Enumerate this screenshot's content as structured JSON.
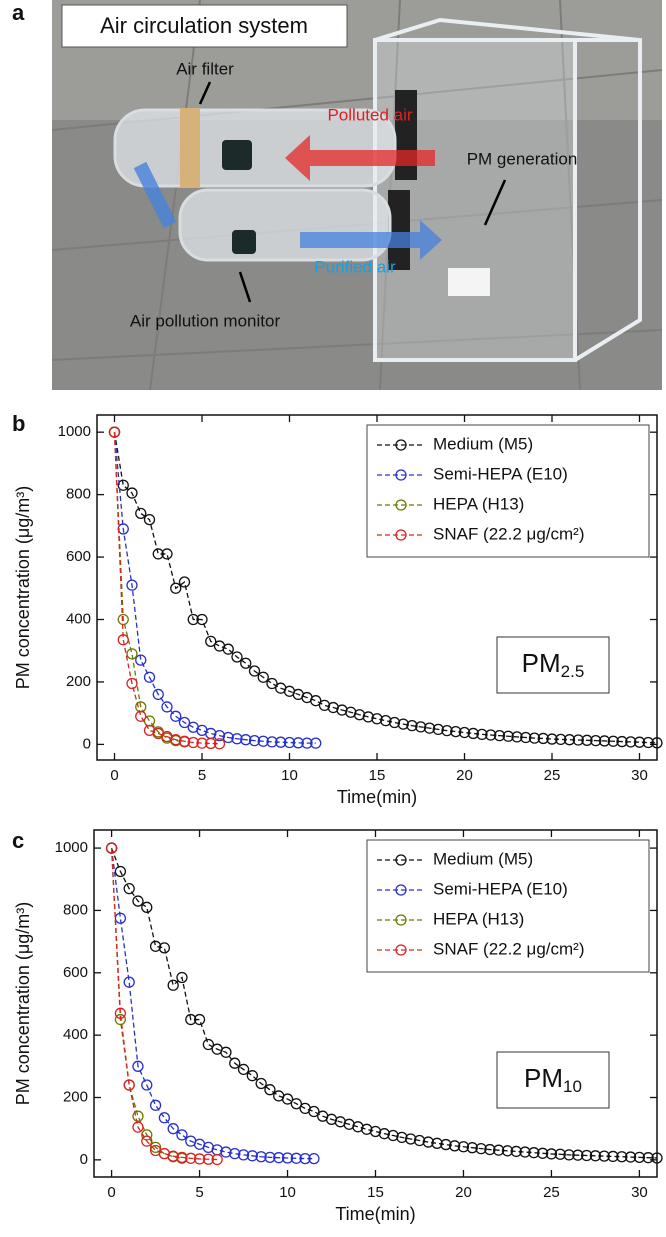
{
  "panel_labels": [
    "a",
    "b",
    "c"
  ],
  "photo": {
    "title": "Air circulation system",
    "air_filter": "Air filter",
    "polluted_air": "Polluted air",
    "pm_generation": "PM generation",
    "purified_air": "Purified air",
    "monitor": "Air pollution monitor"
  },
  "chart_data": [
    {
      "type": "line",
      "x_label": "Time(min)",
      "y_label": "PM concentration (μg/m³)",
      "annotation": {
        "main": "PM",
        "sub": "2.5"
      },
      "xlim": [
        -1,
        31
      ],
      "ylim": [
        -50,
        1055
      ],
      "xticks": [
        0,
        5,
        10,
        15,
        20,
        25,
        30
      ],
      "yticks": [
        0,
        200,
        400,
        600,
        800,
        1000
      ],
      "legend": "upper right",
      "series": [
        {
          "name": "Medium (M5)",
          "color": "#111111",
          "x": [
            0,
            0.5,
            1,
            1.5,
            2,
            2.5,
            3,
            3.5,
            4,
            4.5,
            5,
            5.5,
            6,
            6.5,
            7,
            7.5,
            8,
            8.5,
            9,
            9.5,
            10,
            10.5,
            11,
            11.5,
            12,
            12.5,
            13,
            13.5,
            14,
            14.5,
            15,
            15.5,
            16,
            16.5,
            17,
            17.5,
            18,
            18.5,
            19,
            19.5,
            20,
            20.5,
            21,
            21.5,
            22,
            22.5,
            23,
            23.5,
            24,
            24.5,
            25,
            25.5,
            26,
            26.5,
            27,
            27.5,
            28,
            28.5,
            29,
            29.5,
            30,
            30.5,
            31
          ],
          "values": [
            1000,
            830,
            805,
            740,
            720,
            610,
            610,
            500,
            520,
            400,
            400,
            330,
            315,
            305,
            280,
            260,
            235,
            215,
            195,
            180,
            170,
            160,
            150,
            140,
            125,
            118,
            110,
            103,
            95,
            88,
            82,
            76,
            70,
            65,
            60,
            56,
            52,
            48,
            44,
            41,
            38,
            35,
            32,
            30,
            28,
            26,
            24,
            22,
            20,
            19,
            17,
            16,
            15,
            14,
            13,
            12,
            11,
            10,
            9,
            8,
            7,
            6,
            5
          ]
        },
        {
          "name": "Semi-HEPA (E10)",
          "color": "#2430d0",
          "x": [
            0,
            0.5,
            1,
            1.5,
            2,
            2.5,
            3,
            3.5,
            4,
            4.5,
            5,
            5.5,
            6,
            6.5,
            7,
            7.5,
            8,
            8.5,
            9,
            9.5,
            10,
            10.5,
            11,
            11.5
          ],
          "values": [
            1000,
            690,
            510,
            270,
            215,
            160,
            120,
            90,
            70,
            55,
            45,
            35,
            28,
            22,
            18,
            15,
            12,
            10,
            8,
            7,
            6,
            5,
            4,
            4
          ]
        },
        {
          "name": "HEPA (H13)",
          "color": "#6b7a00",
          "x": [
            0,
            0.5,
            1,
            1.5,
            2,
            2.5,
            3,
            3.5,
            4
          ],
          "values": [
            1000,
            400,
            290,
            120,
            75,
            40,
            20,
            12,
            8
          ]
        },
        {
          "name": "SNAF (22.2 μg/cm²)",
          "color": "#dd2222",
          "x": [
            0,
            0.5,
            1,
            1.5,
            2,
            2.5,
            3,
            3.5,
            4,
            4.5,
            5,
            5.5,
            6
          ],
          "values": [
            1000,
            335,
            195,
            90,
            45,
            35,
            25,
            15,
            10,
            6,
            4,
            3,
            2
          ]
        }
      ]
    },
    {
      "type": "line",
      "x_label": "Time(min)",
      "y_label": "PM concentration (μg/m³)",
      "annotation": {
        "main": "PM",
        "sub": "10"
      },
      "xlim": [
        -1,
        31
      ],
      "ylim": [
        -55,
        1058
      ],
      "xticks": [
        0,
        5,
        10,
        15,
        20,
        25,
        30
      ],
      "yticks": [
        0,
        200,
        400,
        600,
        800,
        1000
      ],
      "legend": "upper right",
      "series": [
        {
          "name": "Medium (M5)",
          "color": "#111111",
          "x": [
            0,
            0.5,
            1,
            1.5,
            2,
            2.5,
            3,
            3.5,
            4,
            4.5,
            5,
            5.5,
            6,
            6.5,
            7,
            7.5,
            8,
            8.5,
            9,
            9.5,
            10,
            10.5,
            11,
            11.5,
            12,
            12.5,
            13,
            13.5,
            14,
            14.5,
            15,
            15.5,
            16,
            16.5,
            17,
            17.5,
            18,
            18.5,
            19,
            19.5,
            20,
            20.5,
            21,
            21.5,
            22,
            22.5,
            23,
            23.5,
            24,
            24.5,
            25,
            25.5,
            26,
            26.5,
            27,
            27.5,
            28,
            28.5,
            29,
            29.5,
            30,
            30.5,
            31
          ],
          "values": [
            1000,
            925,
            870,
            830,
            810,
            685,
            680,
            560,
            585,
            450,
            450,
            370,
            355,
            345,
            310,
            290,
            270,
            245,
            225,
            205,
            195,
            180,
            165,
            155,
            140,
            130,
            122,
            114,
            106,
            98,
            91,
            84,
            78,
            72,
            67,
            62,
            57,
            53,
            49,
            45,
            42,
            39,
            36,
            33,
            31,
            29,
            27,
            25,
            23,
            21,
            19,
            18,
            16,
            15,
            14,
            13,
            12,
            11,
            10,
            9,
            8,
            7,
            6
          ]
        },
        {
          "name": "Semi-HEPA (E10)",
          "color": "#2430d0",
          "x": [
            0,
            0.5,
            1,
            1.5,
            2,
            2.5,
            3,
            3.5,
            4,
            4.5,
            5,
            5.5,
            6,
            6.5,
            7,
            7.5,
            8,
            8.5,
            9,
            9.5,
            10,
            10.5,
            11,
            11.5
          ],
          "values": [
            1000,
            775,
            570,
            300,
            240,
            175,
            135,
            100,
            80,
            60,
            50,
            40,
            32,
            25,
            20,
            16,
            13,
            10,
            8,
            7,
            6,
            5,
            4,
            4
          ]
        },
        {
          "name": "HEPA (H13)",
          "color": "#6b7a00",
          "x": [
            0,
            0.5,
            1,
            1.5,
            2,
            2.5,
            3,
            3.5,
            4
          ],
          "values": [
            1000,
            450,
            240,
            140,
            80,
            40,
            20,
            10,
            5
          ]
        },
        {
          "name": "SNAF (22.2 μg/cm²)",
          "color": "#dd2222",
          "x": [
            0,
            0.5,
            1,
            1.5,
            2,
            2.5,
            3,
            3.5,
            4,
            4.5,
            5,
            5.5,
            6
          ],
          "values": [
            1000,
            470,
            240,
            105,
            60,
            30,
            20,
            12,
            8,
            5,
            3,
            2,
            1
          ]
        }
      ]
    }
  ]
}
